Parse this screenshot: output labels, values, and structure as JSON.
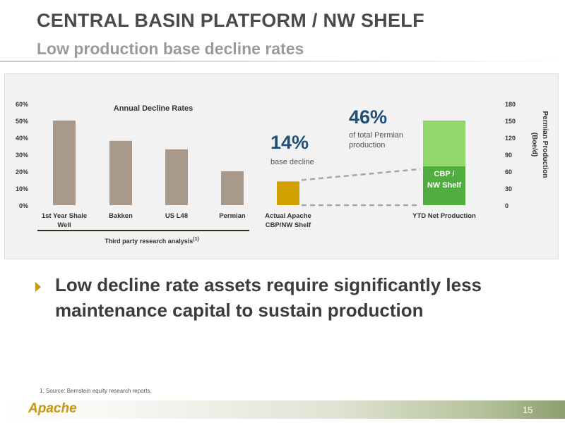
{
  "slide": {
    "title": "CENTRAL BASIN PLATFORM / NW SHELF",
    "subtitle": "Low production base decline rates",
    "bullet": "Low decline rate assets require significantly less maintenance capital to sustain production",
    "footnote": "1. Source: Bernstein equity research reports.",
    "logo": "Apache",
    "page_number": "15"
  },
  "colors": {
    "bar_brown": "#a8998a",
    "bar_gold": "#d2a000",
    "green_dark": "#4fae3f",
    "green_light": "#92d76a",
    "blue_text": "#1f4e79",
    "connector": "#a6a6a6"
  },
  "chart_data": [
    {
      "type": "bar",
      "title": "Annual Decline Rates",
      "categories": [
        "1st Year Shale Well",
        "Bakken",
        "US L48",
        "Permian",
        "Actual Apache CBP/NW Shelf"
      ],
      "category_lines": [
        [
          "1st Year Shale",
          "Well"
        ],
        [
          "Bakken"
        ],
        [
          "US L48"
        ],
        [
          "Permian"
        ],
        [
          "Actual Apache",
          "CBP/NW Shelf"
        ]
      ],
      "values": [
        50,
        38,
        33,
        20,
        14
      ],
      "unit": "%",
      "ylim": [
        0,
        60
      ],
      "yticks": [
        "0%",
        "10%",
        "20%",
        "30%",
        "40%",
        "50%",
        "60%"
      ],
      "group_label": "Third party research analysis",
      "group_label_sup": "(1)",
      "callout": {
        "value": "14%",
        "text": "base decline"
      }
    },
    {
      "type": "bar",
      "stacked": true,
      "categories": [
        "YTD Net Production"
      ],
      "series": [
        {
          "name": "CBP / NW Shelf",
          "name_lines": [
            "CBP /",
            "NW Shelf"
          ],
          "values": [
            69
          ]
        },
        {
          "values": [
            81
          ]
        }
      ],
      "ylabel": "Permian Production (Boe/d)",
      "ylabel_lines": [
        "Permian Production",
        "(Boe/d)"
      ],
      "ylim": [
        0,
        180
      ],
      "yticks": [
        "0",
        "30",
        "60",
        "90",
        "120",
        "150",
        "180"
      ],
      "callout": {
        "value": "46%",
        "text_lines": [
          "of total Permian",
          "production"
        ]
      }
    }
  ]
}
